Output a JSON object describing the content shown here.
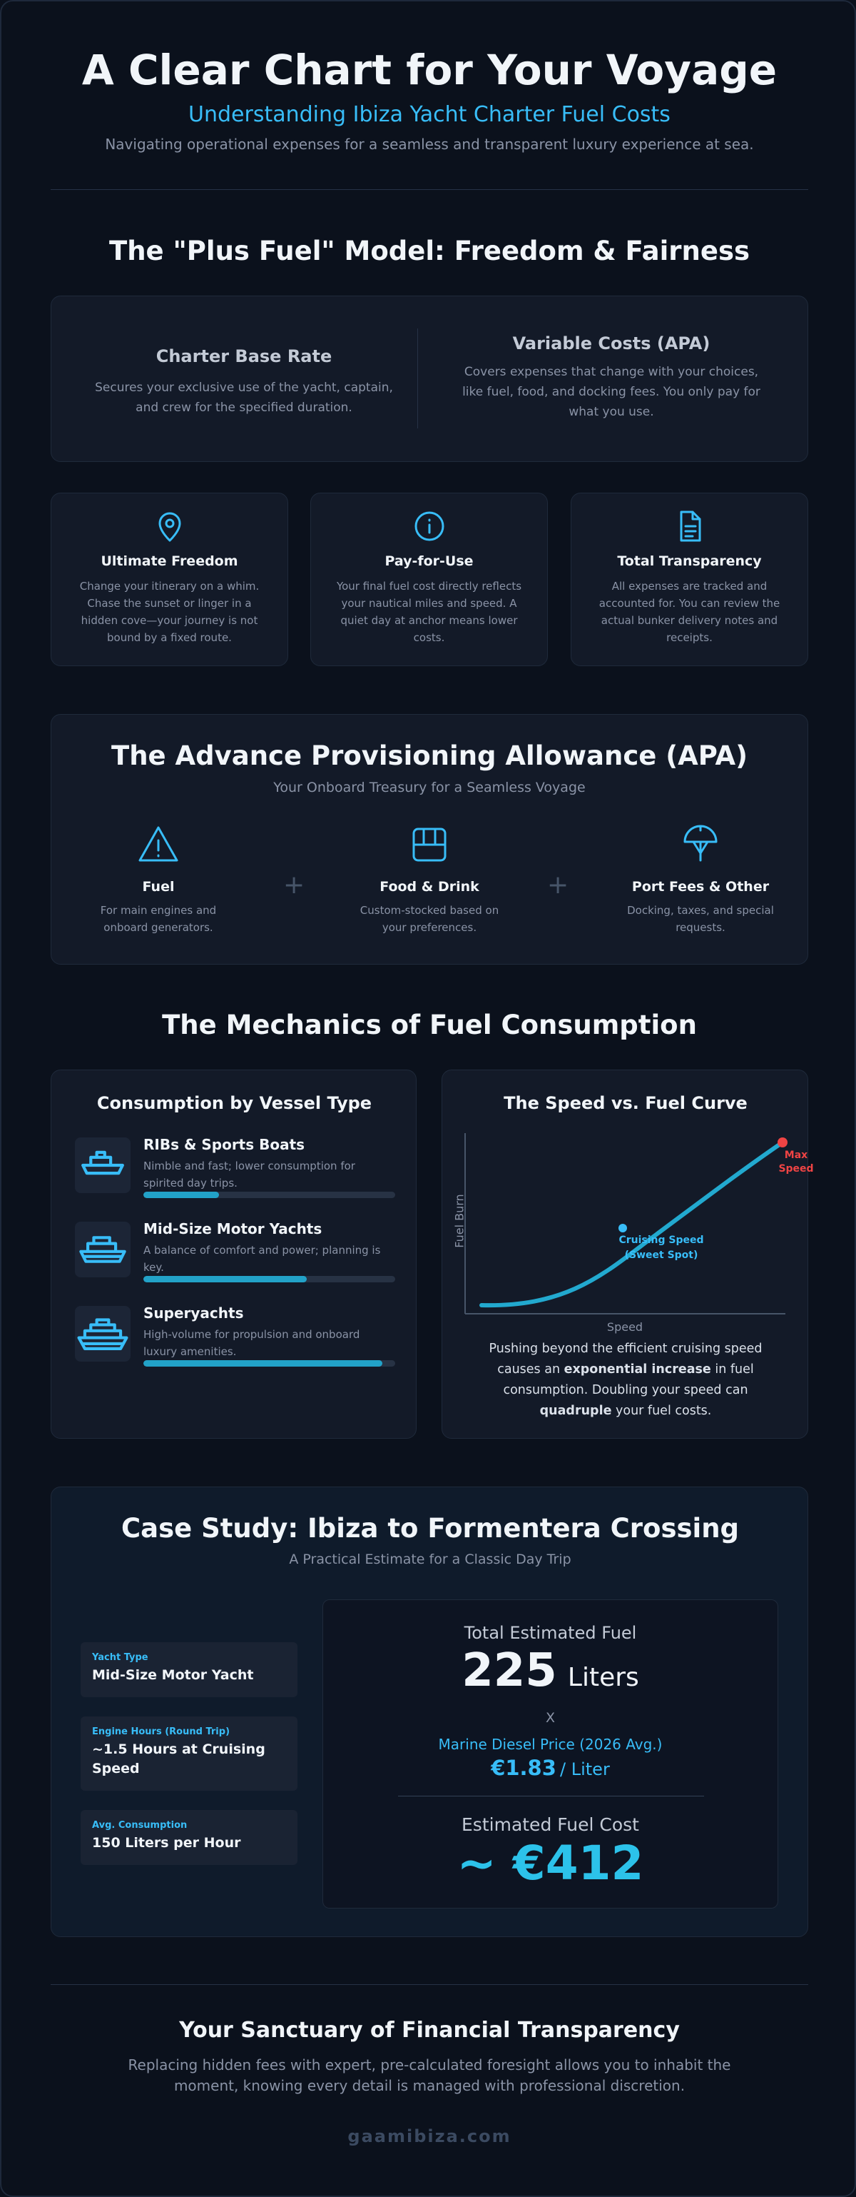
{
  "header": {
    "title": "A Clear Chart for Your Voyage",
    "subtitle": "Understanding Ibiza Yacht Charter Fuel Costs",
    "description": "Navigating operational expenses for a seamless and transparent luxury experience at sea."
  },
  "model": {
    "title": "The \"Plus Fuel\" Model: Freedom & Fairness",
    "base": {
      "title": "Charter Base Rate",
      "text": "Secures your exclusive use of the yacht, captain, and crew for the specified duration."
    },
    "variable": {
      "title": "Variable Costs (APA)",
      "text": "Covers expenses that change with your choices, like fuel, food, and docking fees. You only pay for what you use."
    },
    "features": [
      {
        "title": "Ultimate Freedom",
        "text": "Change your itinerary on a whim. Chase the sunset or linger in a hidden cove—your journey is not bound by a fixed route."
      },
      {
        "title": "Pay-for-Use",
        "text": "Your final fuel cost directly reflects your nautical miles and speed. A quiet day at anchor means lower costs."
      },
      {
        "title": "Total Transparency",
        "text": "All expenses are tracked and accounted for. You can review the actual bunker delivery notes and receipts."
      }
    ]
  },
  "apa": {
    "title": "The Advance Provisioning Allowance (APA)",
    "subtitle": "Your Onboard Treasury for a Seamless Voyage",
    "plus": "+",
    "items": [
      {
        "title": "Fuel",
        "text": "For main engines and onboard generators."
      },
      {
        "title": "Food & Drink",
        "text": "Custom-stocked based on your preferences."
      },
      {
        "title": "Port Fees & Other",
        "text": "Docking, taxes, and special requests."
      }
    ]
  },
  "mechanics": {
    "title": "The Mechanics of Fuel Consumption",
    "vessels": {
      "title": "Consumption by Vessel Type",
      "items": [
        {
          "name": "RIBs & Sports Boats",
          "text": "Nimble and fast; lower consumption for spirited day trips.",
          "level": 30
        },
        {
          "name": "Mid-Size Motor Yachts",
          "text": "A balance of comfort and power; planning is key.",
          "level": 65
        },
        {
          "name": "Superyachts",
          "text": "High-volume for propulsion and onboard luxury amenities.",
          "level": 95
        }
      ]
    },
    "curve": {
      "title": "The Speed vs. Fuel Curve",
      "y_label": "Fuel Burn",
      "x_label": "Speed",
      "cruise_label": "Cruising Speed",
      "cruise_note": "(Sweet Spot)",
      "max_label": "Max Speed",
      "text_parts": [
        "Pushing beyond the efficient cruising speed causes an ",
        "exponential increase",
        " in fuel consumption. Doubling your speed can ",
        "quadruple",
        " your fuel costs."
      ]
    }
  },
  "case": {
    "title": "Case Study: Ibiza to Formentera Crossing",
    "subtitle": "A Practical Estimate for a Classic Day Trip",
    "facts": [
      {
        "label": "Yacht Type",
        "value": "Mid-Size Motor Yacht"
      },
      {
        "label": "Engine Hours (Round Trip)",
        "value": "~1.5 Hours at Cruising Speed"
      },
      {
        "label": "Avg. Consumption",
        "value": "150 Liters per Hour"
      }
    ],
    "total_label": "Total Estimated Fuel",
    "total_value": "225",
    "total_unit": "Liters",
    "times": "X",
    "price_label": "Marine Diesel Price (2026 Avg.)",
    "price": "€1.83",
    "price_unit": "/ Liter",
    "cost_label": "Estimated Fuel Cost",
    "cost": "~ €412"
  },
  "footer": {
    "title": "Your Sanctuary of Financial Transparency",
    "text": "Replacing hidden fees with expert, pre-calculated foresight allows you to inhabit the moment, knowing every detail is managed with professional discretion.",
    "site": "gaamibiza.com"
  }
}
